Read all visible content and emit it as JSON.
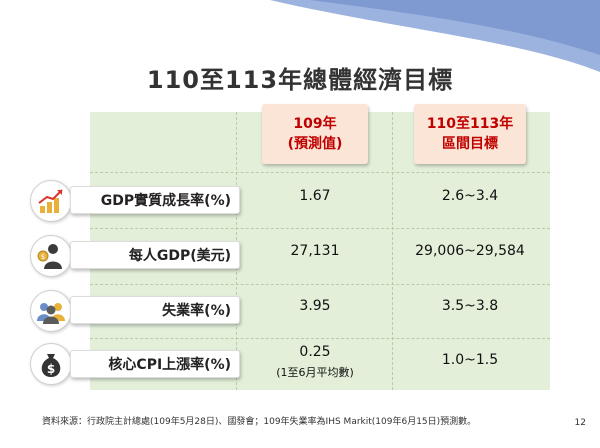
{
  "title": "110至113年總體經濟目標",
  "headers": {
    "col1_line1": "109年",
    "col1_line2": "(預測值)",
    "col2_line1": "110至113年",
    "col2_line2": "區間目標"
  },
  "rows": [
    {
      "label": "GDP實質成長率(%)",
      "v1": "1.67",
      "v2": "2.6~3.4",
      "icon": "growth-chart-icon"
    },
    {
      "label": "每人GDP(美元)",
      "v1": "27,131",
      "v2": "29,006~29,584",
      "icon": "person-money-icon"
    },
    {
      "label": "失業率(%)",
      "v1": "3.95",
      "v2": "3.5~3.8",
      "icon": "people-group-icon"
    },
    {
      "label": "核心CPI上漲率(%)",
      "v1": "0.25",
      "v1_note": "(1至6月平均數)",
      "v2": "1.0~1.5",
      "icon": "money-bag-icon"
    }
  ],
  "footer": "資料來源：行政院主計總處(109年5月28日)、國發會；109年失業率為IHS Markit(109年6月15日)預測數。",
  "page_number": "12",
  "colors": {
    "header_text": "#c00000",
    "header_bg": "#fbe5d6",
    "table_bg": "#e3efd9",
    "corner_blue": "#8aa6d6"
  }
}
